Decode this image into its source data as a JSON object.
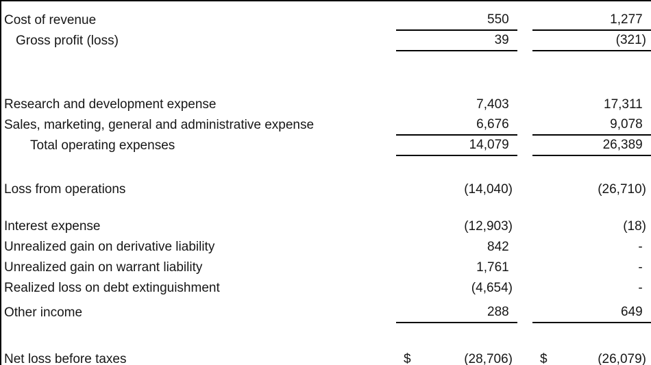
{
  "statement": {
    "colors": {
      "text": "#161616",
      "rule_line": "#000000",
      "background": "#ffffff"
    },
    "currency_symbol": "$",
    "rows": [
      {
        "label": "Cost of revenue",
        "col1": "550 ",
        "col2": "1,277 "
      },
      {
        "label": "Gross profit (loss)",
        "col1": "39 ",
        "col2": "(321)"
      },
      {
        "label": "Research and development expense",
        "col1": "7,403 ",
        "col2": "17,311 "
      },
      {
        "label": "Sales, marketing, general and administrative expense",
        "col1": "6,676 ",
        "col2": "9,078 "
      },
      {
        "label": "Total operating expenses",
        "col1": "14,079 ",
        "col2": "26,389 "
      },
      {
        "label": "Loss from operations",
        "col1": "(14,040)",
        "col2": "(26,710)"
      },
      {
        "label": "Interest expense",
        "col1": "(12,903)",
        "col2": "(18)"
      },
      {
        "label": "Unrealized gain on derivative liability",
        "col1": "842 ",
        "col2": "- "
      },
      {
        "label": "Unrealized gain on warrant liability",
        "col1": "1,761 ",
        "col2": "- "
      },
      {
        "label": "Realized loss on debt extinguishment",
        "col1": "(4,654)",
        "col2": "- "
      },
      {
        "label": "Other income",
        "col1": "288 ",
        "col2": "649 "
      },
      {
        "label": "Net loss before taxes",
        "cur": "$",
        "col1": "(28,706)",
        "col2": "(26,079)"
      }
    ]
  }
}
